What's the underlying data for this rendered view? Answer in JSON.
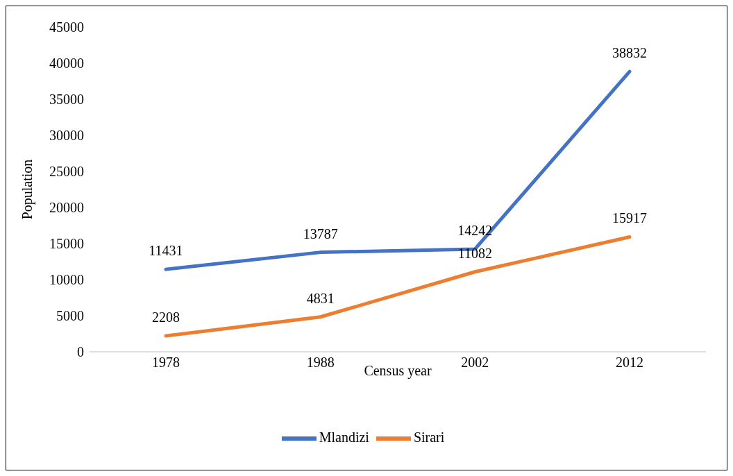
{
  "chart_data": {
    "type": "line",
    "xlabel": "Census year",
    "ylabel": "Population",
    "categories": [
      "1978",
      "1988",
      "2002",
      "2012"
    ],
    "series": [
      {
        "name": "Mlandizi",
        "color": "#4472c4",
        "values": [
          11431,
          13787,
          14242,
          38832
        ]
      },
      {
        "name": "Sirari",
        "color": "#ed7d31",
        "values": [
          2208,
          4831,
          11082,
          15917
        ]
      }
    ],
    "ylim": [
      0,
      45000
    ],
    "yticks": [
      0,
      5000,
      10000,
      15000,
      20000,
      25000,
      30000,
      35000,
      40000,
      45000
    ],
    "grid": false,
    "legend": "bottom",
    "marker": "none",
    "line_style": "solid",
    "data_labels": true
  }
}
